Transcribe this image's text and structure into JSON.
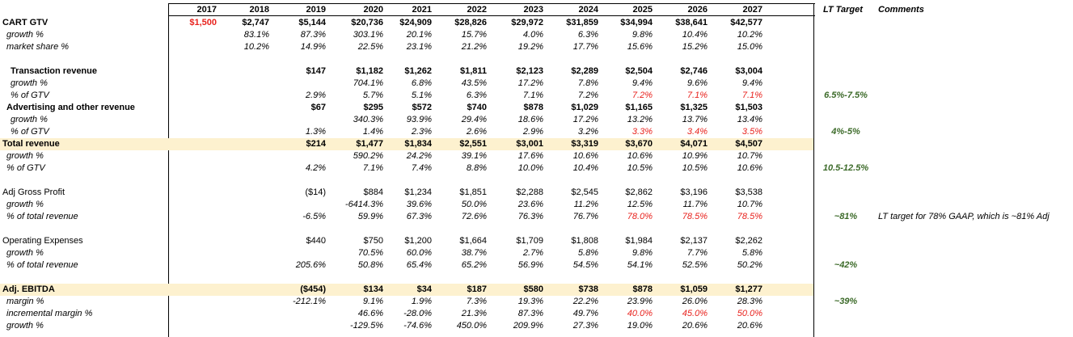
{
  "header": {
    "years": [
      "2017",
      "2018",
      "2019",
      "2020",
      "2021",
      "2022",
      "2023",
      "2024",
      "2025",
      "2026",
      "2027"
    ],
    "lt_target": "LT Target",
    "comments": "Comments"
  },
  "rows": [
    {
      "label": "CART GTV",
      "indent": 0,
      "bold": true,
      "italic": false,
      "hl": false,
      "top": 21,
      "values": [
        "$1,500",
        "$2,747",
        "$5,144",
        "$20,736",
        "$24,909",
        "$28,826",
        "$29,972",
        "$31,859",
        "$34,994",
        "$38,641",
        "$42,577"
      ],
      "red": [
        0
      ],
      "lt": "",
      "comment": ""
    },
    {
      "label": "growth %",
      "indent": 1,
      "bold": false,
      "italic": true,
      "hl": false,
      "top": 36,
      "values": [
        "",
        "83.1%",
        "87.3%",
        "303.1%",
        "20.1%",
        "15.7%",
        "4.0%",
        "6.3%",
        "9.8%",
        "10.4%",
        "10.2%"
      ],
      "red": [],
      "lt": "",
      "comment": ""
    },
    {
      "label": "market share %",
      "indent": 1,
      "bold": false,
      "italic": true,
      "hl": false,
      "top": 51,
      "values": [
        "",
        "10.2%",
        "14.9%",
        "22.5%",
        "23.1%",
        "21.2%",
        "19.2%",
        "17.7%",
        "15.6%",
        "15.2%",
        "15.0%"
      ],
      "red": [],
      "lt": "",
      "comment": ""
    },
    {
      "label": "Transaction revenue",
      "indent": 2,
      "bold": true,
      "italic": false,
      "hl": false,
      "top": 81,
      "values": [
        "",
        "",
        "$147",
        "$1,182",
        "$1,262",
        "$1,811",
        "$2,123",
        "$2,289",
        "$2,504",
        "$2,746",
        "$3,004"
      ],
      "red": [],
      "lt": "",
      "comment": ""
    },
    {
      "label": "growth %",
      "indent": 2,
      "bold": false,
      "italic": true,
      "hl": false,
      "top": 96,
      "values": [
        "",
        "",
        "",
        "704.1%",
        "6.8%",
        "43.5%",
        "17.2%",
        "7.8%",
        "9.4%",
        "9.6%",
        "9.4%"
      ],
      "red": [],
      "lt": "",
      "comment": ""
    },
    {
      "label": "% of GTV",
      "indent": 2,
      "bold": false,
      "italic": true,
      "hl": false,
      "top": 111,
      "values": [
        "",
        "",
        "2.9%",
        "5.7%",
        "5.1%",
        "6.3%",
        "7.1%",
        "7.2%",
        "7.2%",
        "7.1%",
        "7.1%"
      ],
      "red": [
        8,
        9,
        10
      ],
      "lt": "6.5%-7.5%",
      "comment": ""
    },
    {
      "label": "Advertising and other revenue",
      "indent": 1,
      "bold": true,
      "italic": false,
      "hl": false,
      "top": 126,
      "values": [
        "",
        "",
        "$67",
        "$295",
        "$572",
        "$740",
        "$878",
        "$1,029",
        "$1,165",
        "$1,325",
        "$1,503"
      ],
      "red": [],
      "lt": "",
      "comment": ""
    },
    {
      "label": "growth %",
      "indent": 2,
      "bold": false,
      "italic": true,
      "hl": false,
      "top": 141,
      "values": [
        "",
        "",
        "",
        "340.3%",
        "93.9%",
        "29.4%",
        "18.6%",
        "17.2%",
        "13.2%",
        "13.7%",
        "13.4%"
      ],
      "red": [],
      "lt": "",
      "comment": ""
    },
    {
      "label": "% of GTV",
      "indent": 2,
      "bold": false,
      "italic": true,
      "hl": false,
      "top": 156,
      "values": [
        "",
        "",
        "1.3%",
        "1.4%",
        "2.3%",
        "2.6%",
        "2.9%",
        "3.2%",
        "3.3%",
        "3.4%",
        "3.5%"
      ],
      "red": [
        8,
        9,
        10
      ],
      "lt": "4%-5%",
      "comment": ""
    },
    {
      "label": "Total revenue",
      "indent": 0,
      "bold": true,
      "italic": false,
      "hl": true,
      "top": 171,
      "values": [
        "",
        "",
        "$214",
        "$1,477",
        "$1,834",
        "$2,551",
        "$3,001",
        "$3,319",
        "$3,670",
        "$4,071",
        "$4,507"
      ],
      "red": [],
      "lt": "",
      "comment": ""
    },
    {
      "label": "growth %",
      "indent": 1,
      "bold": false,
      "italic": true,
      "hl": false,
      "top": 186,
      "values": [
        "",
        "",
        "",
        "590.2%",
        "24.2%",
        "39.1%",
        "17.6%",
        "10.6%",
        "10.6%",
        "10.9%",
        "10.7%"
      ],
      "red": [],
      "lt": "",
      "comment": ""
    },
    {
      "label": "% of GTV",
      "indent": 1,
      "bold": false,
      "italic": true,
      "hl": false,
      "top": 201,
      "values": [
        "",
        "",
        "4.2%",
        "7.1%",
        "7.4%",
        "8.8%",
        "10.0%",
        "10.4%",
        "10.5%",
        "10.5%",
        "10.6%"
      ],
      "red": [],
      "lt": "10.5-12.5%",
      "comment": ""
    },
    {
      "label": "Adj Gross Profit",
      "indent": 0,
      "bold": false,
      "italic": false,
      "hl": false,
      "top": 231,
      "values": [
        "",
        "",
        "($14)",
        "$884",
        "$1,234",
        "$1,851",
        "$2,288",
        "$2,545",
        "$2,862",
        "$3,196",
        "$3,538"
      ],
      "red": [],
      "lt": "",
      "comment": ""
    },
    {
      "label": "growth %",
      "indent": 1,
      "bold": false,
      "italic": true,
      "hl": false,
      "top": 246,
      "values": [
        "",
        "",
        "",
        "-6414.3%",
        "39.6%",
        "50.0%",
        "23.6%",
        "11.2%",
        "12.5%",
        "11.7%",
        "10.7%"
      ],
      "red": [],
      "lt": "",
      "comment": ""
    },
    {
      "label": "% of total revenue",
      "indent": 1,
      "bold": false,
      "italic": true,
      "hl": false,
      "top": 261,
      "values": [
        "",
        "",
        "-6.5%",
        "59.9%",
        "67.3%",
        "72.6%",
        "76.3%",
        "76.7%",
        "78.0%",
        "78.5%",
        "78.5%"
      ],
      "red": [
        8,
        9,
        10
      ],
      "lt": "~81%",
      "comment": "LT target for 78% GAAP, which is ~81% Adj"
    },
    {
      "label": "Operating Expenses",
      "indent": 0,
      "bold": false,
      "italic": false,
      "hl": false,
      "top": 291,
      "values": [
        "",
        "",
        "$440",
        "$750",
        "$1,200",
        "$1,664",
        "$1,709",
        "$1,808",
        "$1,984",
        "$2,137",
        "$2,262"
      ],
      "red": [],
      "lt": "",
      "comment": ""
    },
    {
      "label": "growth %",
      "indent": 1,
      "bold": false,
      "italic": true,
      "hl": false,
      "top": 306,
      "values": [
        "",
        "",
        "",
        "70.5%",
        "60.0%",
        "38.7%",
        "2.7%",
        "5.8%",
        "9.8%",
        "7.7%",
        "5.8%"
      ],
      "red": [],
      "lt": "",
      "comment": ""
    },
    {
      "label": "% of total revenue",
      "indent": 1,
      "bold": false,
      "italic": true,
      "hl": false,
      "top": 321,
      "values": [
        "",
        "",
        "205.6%",
        "50.8%",
        "65.4%",
        "65.2%",
        "56.9%",
        "54.5%",
        "54.1%",
        "52.5%",
        "50.2%"
      ],
      "red": [],
      "lt": "~42%",
      "comment": ""
    },
    {
      "label": "Adj. EBITDA",
      "indent": 0,
      "bold": true,
      "italic": false,
      "hl": true,
      "top": 351,
      "values": [
        "",
        "",
        "($454)",
        "$134",
        "$34",
        "$187",
        "$580",
        "$738",
        "$878",
        "$1,059",
        "$1,277"
      ],
      "red": [],
      "lt": "",
      "comment": ""
    },
    {
      "label": "margin %",
      "indent": 1,
      "bold": false,
      "italic": true,
      "hl": false,
      "top": 366,
      "values": [
        "",
        "",
        "-212.1%",
        "9.1%",
        "1.9%",
        "7.3%",
        "19.3%",
        "22.2%",
        "23.9%",
        "26.0%",
        "28.3%"
      ],
      "red": [],
      "lt": "~39%",
      "comment": ""
    },
    {
      "label": "incremental margin %",
      "indent": 1,
      "bold": false,
      "italic": true,
      "hl": false,
      "top": 381,
      "values": [
        "",
        "",
        "",
        "46.6%",
        "-28.0%",
        "21.3%",
        "87.3%",
        "49.7%",
        "40.0%",
        "45.0%",
        "50.0%"
      ],
      "red": [
        8,
        9,
        10
      ],
      "lt": "",
      "comment": ""
    },
    {
      "label": "growth %",
      "indent": 1,
      "bold": false,
      "italic": true,
      "hl": false,
      "top": 396,
      "values": [
        "",
        "",
        "",
        "-129.5%",
        "-74.6%",
        "450.0%",
        "209.9%",
        "27.3%",
        "19.0%",
        "20.6%",
        "20.6%"
      ],
      "red": [],
      "lt": "",
      "comment": ""
    }
  ]
}
